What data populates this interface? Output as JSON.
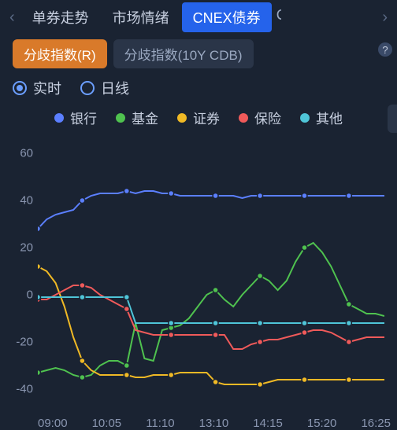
{
  "tabs": {
    "items": [
      "单券走势",
      "市场情绪",
      "CNEX债券"
    ],
    "active_index": 2,
    "next_peek": "C"
  },
  "pills": {
    "items": [
      "分歧指数(R)",
      "分歧指数(10Y CDB)"
    ],
    "active_index": 0
  },
  "radios": {
    "items": [
      "实时",
      "日线"
    ],
    "selected_index": 0
  },
  "legend": [
    {
      "label": "银行",
      "color": "#5b7fff"
    },
    {
      "label": "基金",
      "color": "#4fc24f"
    },
    {
      "label": "证券",
      "color": "#f0b925"
    },
    {
      "label": "保险",
      "color": "#f05a5a"
    },
    {
      "label": "其他",
      "color": "#4fc5d8"
    }
  ],
  "chart": {
    "type": "line",
    "background": "#1a2332",
    "ylim": [
      -45,
      65
    ],
    "yticks": [
      60,
      40,
      20,
      0,
      -20,
      -40
    ],
    "xticks": [
      "09:00",
      "10:05",
      "11:10",
      "13:10",
      "14:15",
      "15:20",
      "16:25"
    ],
    "x_count": 40,
    "marker_interval": 5,
    "line_width": 2,
    "marker_radius": 3.5,
    "series": {
      "bank": {
        "color": "#5b7fff",
        "y": [
          28,
          32,
          34,
          35,
          36,
          40,
          42,
          43,
          43,
          43,
          44,
          43,
          44,
          44,
          43,
          43,
          42,
          42,
          42,
          42,
          42,
          42,
          42,
          41,
          42,
          42,
          42,
          42,
          42,
          42,
          42,
          42,
          42,
          42,
          42,
          42,
          42,
          42,
          42,
          42
        ]
      },
      "fund": {
        "color": "#4fc24f",
        "y": [
          -33,
          -32,
          -31,
          -32,
          -34,
          -35,
          -34,
          -30,
          -28,
          -28,
          -30,
          -12,
          -27,
          -28,
          -15,
          -14,
          -13,
          -10,
          -5,
          0,
          2,
          -2,
          -5,
          0,
          4,
          8,
          6,
          2,
          6,
          14,
          20,
          22,
          18,
          12,
          4,
          -4,
          -6,
          -8,
          -8,
          -9
        ]
      },
      "securities": {
        "color": "#f0b925",
        "y": [
          12,
          10,
          5,
          -5,
          -18,
          -28,
          -32,
          -34,
          -34,
          -34,
          -34,
          -35,
          -35,
          -34,
          -34,
          -34,
          -33,
          -33,
          -33,
          -33,
          -37,
          -38,
          -38,
          -38,
          -38,
          -38,
          -37,
          -36,
          -36,
          -36,
          -36,
          -36,
          -36,
          -36,
          -36,
          -36,
          -36,
          -36,
          -36,
          -36
        ]
      },
      "insurance": {
        "color": "#f05a5a",
        "y": [
          -2,
          -2,
          0,
          2,
          4,
          4,
          3,
          0,
          -2,
          -4,
          -6,
          -15,
          -16,
          -17,
          -17,
          -17,
          -17,
          -17,
          -17,
          -17,
          -17,
          -17,
          -23,
          -23,
          -21,
          -20,
          -19,
          -19,
          -18,
          -17,
          -16,
          -15,
          -15,
          -16,
          -18,
          -20,
          -19,
          -18,
          -18,
          -18
        ]
      },
      "other": {
        "color": "#4fc5d8",
        "y": [
          -1,
          -1,
          -1,
          -1,
          -1,
          -1,
          -1,
          -1,
          -1,
          -1,
          -1,
          -12,
          -12,
          -12,
          -12,
          -12,
          -12,
          -12,
          -12,
          -12,
          -12,
          -12,
          -12,
          -12,
          -12,
          -12,
          -12,
          -12,
          -12,
          -12,
          -12,
          -12,
          -12,
          -12,
          -12,
          -12,
          -12,
          -12,
          -12,
          -12
        ]
      }
    }
  }
}
